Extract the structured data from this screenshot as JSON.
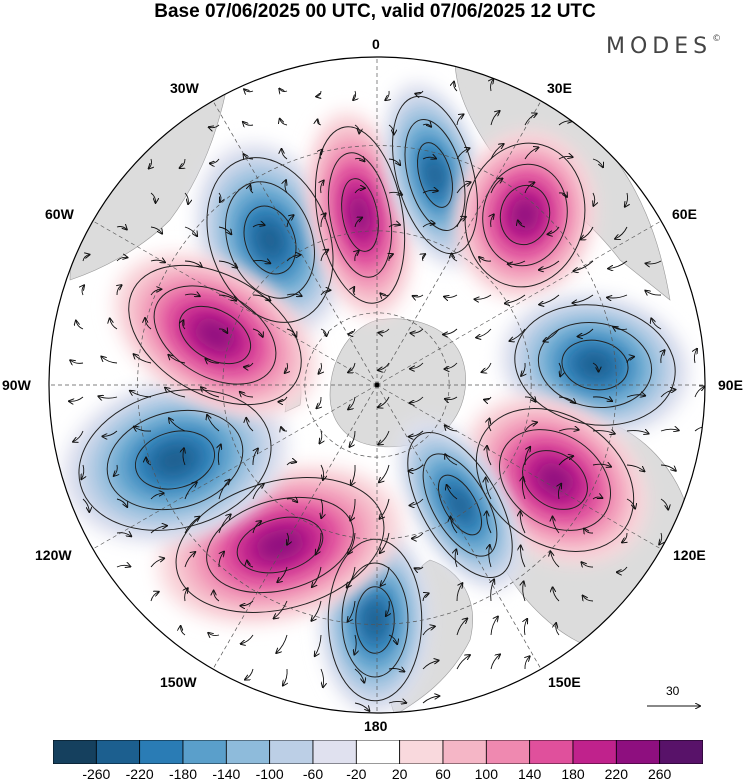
{
  "title": "Base 07/06/2025 00 UTC, valid 07/06/2025 12 UTC",
  "brand": "MODES",
  "brand_mark": "©",
  "longitude_labels": {
    "top": "0",
    "e30": "30E",
    "e60": "60E",
    "e90": "90E",
    "e120": "120E",
    "e150": "150E",
    "bottom": "180",
    "w150": "150W",
    "w120": "120W",
    "w90": "90W",
    "w60": "60W",
    "w30": "30W"
  },
  "reference_vector": {
    "label": "30"
  },
  "colorbar": {
    "colors": [
      "#15405e",
      "#1c5f8f",
      "#2a7cb5",
      "#5a9fcb",
      "#8ebbdb",
      "#bccfe6",
      "#e0e1ef",
      "#ffffff",
      "#f9d9dd",
      "#f5b6c6",
      "#ef89b0",
      "#e0509c",
      "#c0228c",
      "#8e0f7f",
      "#581269"
    ],
    "tick_labels": [
      "-260",
      "-220",
      "-180",
      "-140",
      "-100",
      "-60",
      "-20",
      "20",
      "60",
      "100",
      "140",
      "180",
      "220",
      "260"
    ]
  },
  "colors": {
    "land": "#dcdcdc",
    "ocean": "#ffffff",
    "grid": "#555555",
    "contour": "#222222"
  }
}
